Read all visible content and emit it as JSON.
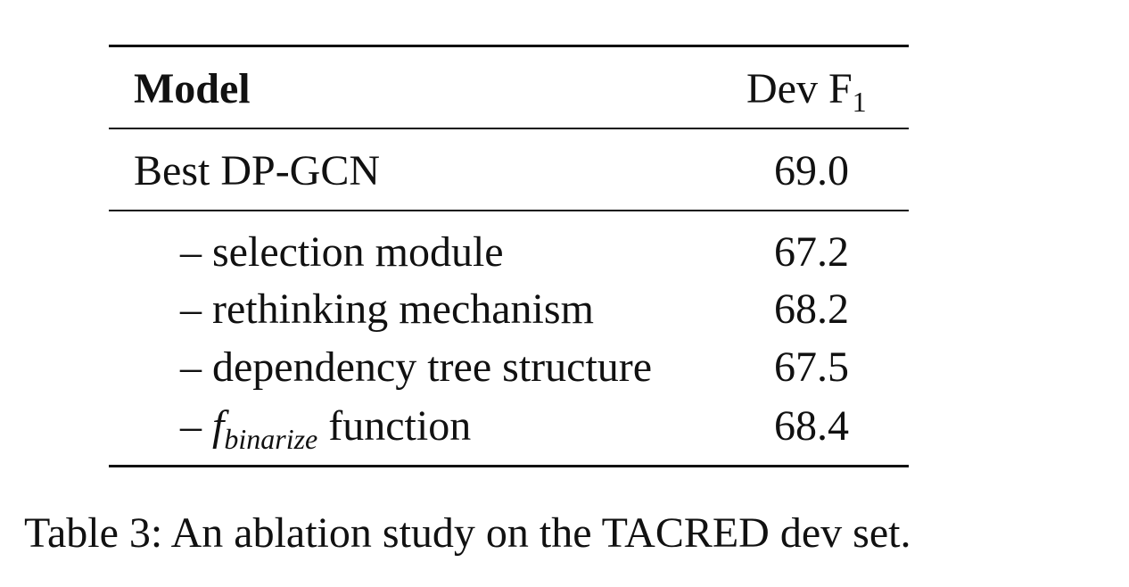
{
  "table": {
    "header": {
      "model": "Model",
      "dev_label": "Dev F",
      "dev_subscript": "1"
    },
    "best": {
      "model": "Best DP-GCN",
      "value": "69.0"
    },
    "ablations": [
      {
        "prefix": "–",
        "label": "selection module",
        "value": "67.2"
      },
      {
        "prefix": "–",
        "label": "rethinking mechanism",
        "value": "68.2"
      },
      {
        "prefix": "–",
        "label": "dependency tree structure",
        "value": "67.5"
      },
      {
        "prefix": "–",
        "math": "f",
        "math_subscript": "binarize",
        "label": "function",
        "value": "68.4"
      }
    ]
  },
  "caption": "Table 3: An ablation study on the TACRED dev set."
}
